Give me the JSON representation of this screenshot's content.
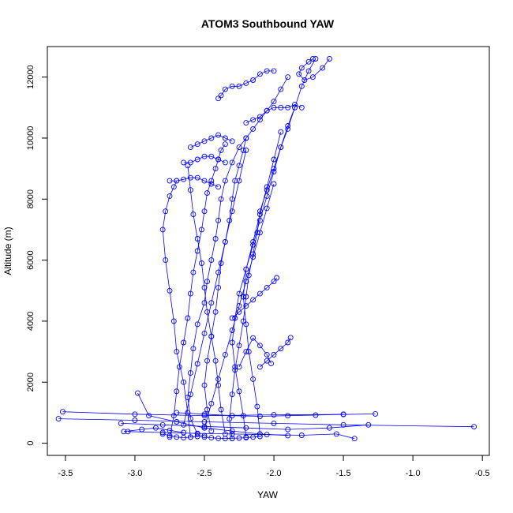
{
  "chart_data": {
    "type": "scatter",
    "title": "ATOM3 Southbound YAW",
    "xlabel": "YAW",
    "ylabel": "Altitude (m)",
    "xlim": [
      -3.63,
      -0.45
    ],
    "ylim": [
      -400,
      13000
    ],
    "x_ticks": [
      -3.5,
      -3.0,
      -2.5,
      -2.0,
      -1.5,
      -1.0,
      -0.5
    ],
    "x_tick_labels": [
      "-3.5",
      "-3.0",
      "-2.5",
      "-2.0",
      "-1.5",
      "-1.0",
      "-0.5"
    ],
    "y_ticks": [
      0,
      2000,
      4000,
      6000,
      8000,
      10000,
      12000
    ],
    "y_tick_labels": [
      "0",
      "2000",
      "4000",
      "6000",
      "8000",
      "10000",
      "12000"
    ],
    "grid": false,
    "series_color": "#0000ff",
    "marker": "open-circle",
    "connected": true,
    "series": [
      {
        "x": [
          -2.55,
          -2.6,
          -2.62,
          -2.6,
          -2.58,
          -2.55,
          -2.5,
          -2.48,
          -2.45,
          -2.42,
          -2.4,
          -2.38,
          -2.35,
          -2.3,
          -2.25,
          -2.2,
          -2.15,
          -2.1,
          -2.05,
          -2.0,
          -1.95,
          -1.9
        ],
        "y": [
          300,
          800,
          1500,
          2300,
          3100,
          3900,
          4600,
          5300,
          6000,
          6700,
          7300,
          8000,
          8600,
          9200,
          9700,
          10000,
          10300,
          10600,
          10900,
          11200,
          11600,
          12000
        ]
      },
      {
        "x": [
          -2.75,
          -2.72,
          -2.7,
          -2.68,
          -2.65,
          -2.62,
          -2.6,
          -2.58,
          -2.55,
          -2.52,
          -2.5,
          -2.48,
          -2.45,
          -2.42,
          -2.4,
          -2.38,
          -2.35
        ],
        "y": [
          200,
          900,
          1700,
          2500,
          3300,
          4100,
          4900,
          5600,
          6300,
          7000,
          7600,
          8200,
          8600,
          9000,
          9300,
          9600,
          9800
        ]
      },
      {
        "x": [
          -2.3,
          -2.32,
          -2.3,
          -2.28,
          -2.25,
          -2.22,
          -2.2,
          -2.18,
          -2.15,
          -2.12,
          -2.1,
          -2.05,
          -2.0,
          -1.95,
          -1.9,
          -1.85,
          -1.8,
          -1.75,
          -1.7
        ],
        "y": [
          150,
          800,
          1600,
          2400,
          3200,
          4000,
          4800,
          5500,
          6200,
          6900,
          7600,
          8300,
          9000,
          9700,
          10300,
          11000,
          11700,
          12200,
          12600
        ]
      },
      {
        "x": [
          -2.45,
          -2.48,
          -2.5,
          -2.48,
          -2.45,
          -2.42,
          -2.4,
          -2.38,
          -2.35,
          -2.32,
          -2.3,
          -2.28,
          -2.25,
          -2.22,
          -2.2
        ],
        "y": [
          400,
          1100,
          1900,
          2700,
          3500,
          4300,
          5100,
          5900,
          6600,
          7300,
          8000,
          8600,
          9100,
          9600,
          10000
        ]
      },
      {
        "x": [
          -2.6,
          -2.62,
          -2.65,
          -2.7,
          -2.72,
          -2.75,
          -2.78,
          -2.8,
          -2.78,
          -2.75,
          -2.72,
          -2.7
        ],
        "y": [
          200,
          1000,
          2000,
          3000,
          4000,
          5000,
          6000,
          7000,
          7600,
          8100,
          8400,
          8600
        ]
      },
      {
        "x": [
          -2.2,
          -2.22,
          -2.25,
          -2.28,
          -2.3,
          -2.28,
          -2.25,
          -2.2,
          -2.15,
          -2.1,
          -2.05,
          -2.0,
          -1.95,
          -1.9,
          -1.85
        ],
        "y": [
          200,
          900,
          1700,
          2500,
          3300,
          4100,
          4900,
          5700,
          6500,
          7300,
          8100,
          8900,
          9700,
          10400,
          11000
        ]
      },
      {
        "x": [
          -2.35,
          -2.38,
          -2.4,
          -2.42,
          -2.45,
          -2.48,
          -2.5,
          -2.52,
          -2.55,
          -2.58,
          -2.6,
          -2.62
        ],
        "y": [
          300,
          1100,
          1900,
          2700,
          3500,
          4300,
          5100,
          5900,
          6700,
          7500,
          8300,
          9100
        ]
      },
      {
        "x": [
          -2.5,
          -2.45,
          -2.4,
          -2.35,
          -2.3,
          -2.25,
          -2.2,
          -2.15,
          -2.1,
          -2.05,
          -2.0
        ],
        "y": [
          500,
          1300,
          2100,
          2900,
          3700,
          4500,
          5300,
          6100,
          6900,
          7700,
          8500
        ]
      },
      {
        "x": [
          -2.1,
          -2.12,
          -2.15,
          -2.18,
          -2.2,
          -2.22,
          -2.2,
          -2.15,
          -2.1,
          -2.05,
          -2.0,
          -1.95
        ],
        "y": [
          300,
          1200,
          2100,
          3000,
          3900,
          4800,
          5700,
          6600,
          7500,
          8400,
          9300,
          10200
        ]
      },
      {
        "x": [
          -2.65,
          -2.6,
          -2.55,
          -2.5,
          -2.45,
          -2.4,
          -2.35,
          -2.3,
          -2.25,
          -2.2
        ],
        "y": [
          600,
          1600,
          2600,
          3600,
          4600,
          5600,
          6600,
          7600,
          8600,
          9600
        ]
      },
      {
        "x": [
          -3.52,
          -3.0,
          -2.5,
          -2.0,
          -1.5,
          -1.27
        ],
        "y": [
          1030,
          950,
          900,
          930,
          940,
          960
        ]
      },
      {
        "x": [
          -3.55,
          -3.0,
          -2.5,
          -2.0,
          -1.5,
          -0.56
        ],
        "y": [
          800,
          750,
          700,
          650,
          600,
          540
        ]
      },
      {
        "x": [
          -3.1,
          -2.8,
          -2.5,
          -2.2,
          -1.9,
          -1.6,
          -1.32
        ],
        "y": [
          650,
          600,
          550,
          500,
          450,
          500,
          600
        ]
      },
      {
        "x": [
          -3.05,
          -2.8,
          -2.55,
          -2.3,
          -2.05,
          -1.8,
          -1.55,
          -1.42
        ],
        "y": [
          380,
          350,
          320,
          300,
          280,
          260,
          300,
          150
        ]
      },
      {
        "x": [
          -2.98,
          -2.9,
          -2.7,
          -2.5,
          -2.3,
          -2.1,
          -1.9
        ],
        "y": [
          1640,
          900,
          700,
          500,
          400,
          300,
          250
        ]
      },
      {
        "x": [
          -2.02,
          -2.05,
          -2.1,
          -2.15,
          -2.2,
          -2.25
        ],
        "y": [
          2610,
          2900,
          3200,
          3450,
          3000,
          2500
        ]
      },
      {
        "x": [
          -1.98,
          -2.0,
          -2.05,
          -2.1,
          -2.15,
          -2.2,
          -2.25,
          -2.3
        ],
        "y": [
          5420,
          5300,
          5100,
          4900,
          4700,
          4500,
          4300,
          4100
        ]
      },
      {
        "x": [
          -1.88,
          -1.9,
          -1.95,
          -2.0,
          -2.05,
          -2.1
        ],
        "y": [
          3460,
          3300,
          3100,
          2900,
          2700,
          2500
        ]
      },
      {
        "x": [
          -1.72,
          -1.75,
          -1.8,
          -1.82,
          -1.78,
          -1.72,
          -1.65,
          -1.6
        ],
        "y": [
          12600,
          12500,
          12300,
          12100,
          11900,
          12000,
          12300,
          12600
        ]
      },
      {
        "x": [
          -2.4,
          -2.38,
          -2.35,
          -2.3,
          -2.25,
          -2.2,
          -2.15,
          -2.1,
          -2.05,
          -2.0
        ],
        "y": [
          11300,
          11400,
          11600,
          11700,
          11700,
          11800,
          11900,
          12100,
          12200,
          12200
        ]
      },
      {
        "x": [
          -2.2,
          -2.15,
          -2.1,
          -2.05,
          -2.0,
          -1.95,
          -1.9,
          -1.85,
          -1.8
        ],
        "y": [
          10500,
          10600,
          10700,
          10900,
          11000,
          11000,
          11000,
          11100,
          11000
        ]
      },
      {
        "x": [
          -2.6,
          -2.55,
          -2.5,
          -2.45,
          -2.4,
          -2.35,
          -2.3
        ],
        "y": [
          9700,
          9800,
          9900,
          10000,
          10100,
          10000,
          9900
        ]
      },
      {
        "x": [
          -2.75,
          -2.7,
          -2.65,
          -2.6,
          -2.55,
          -2.5,
          -2.45,
          -2.4
        ],
        "y": [
          8600,
          8600,
          8650,
          8700,
          8700,
          8600,
          8500,
          8400
        ]
      },
      {
        "x": [
          -2.65,
          -2.6,
          -2.55,
          -2.5,
          -2.45,
          -2.4,
          -2.35
        ],
        "y": [
          9200,
          9200,
          9300,
          9400,
          9400,
          9300,
          9200
        ]
      },
      {
        "x": [
          -2.5,
          -2.45,
          -2.4,
          -2.35,
          -2.3,
          -2.25,
          -2.2,
          -2.15,
          -2.1
        ],
        "y": [
          200,
          180,
          160,
          150,
          160,
          170,
          180,
          200,
          220
        ]
      },
      {
        "x": [
          -2.8,
          -2.75,
          -2.7,
          -2.65,
          -2.6,
          -2.55,
          -2.5
        ],
        "y": [
          300,
          250,
          200,
          180,
          200,
          220,
          250
        ]
      },
      {
        "x": [
          -3.08,
          -2.95,
          -2.85,
          -2.75,
          -2.65
        ],
        "y": [
          380,
          450,
          500,
          420,
          350
        ]
      },
      {
        "x": [
          -2.7,
          -2.5,
          -2.3,
          -2.1,
          -1.9,
          -1.7,
          -1.5
        ],
        "y": [
          1000,
          950,
          900,
          880,
          900,
          920,
          950
        ]
      }
    ]
  }
}
